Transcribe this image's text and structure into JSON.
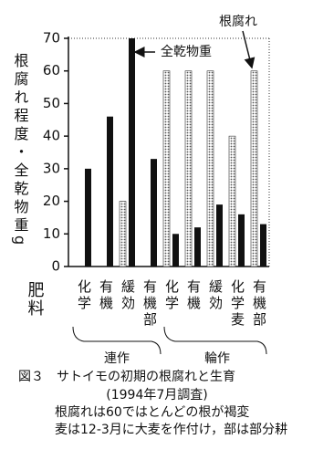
{
  "chart_data": {
    "type": "bar",
    "ylabel": "根腐れ程度・全乾物重g",
    "xlabel": "肥料",
    "categories": [
      "化学",
      "有機",
      "緩効",
      "有機部",
      "化学",
      "有機",
      "緩効",
      "化学麦",
      "有機部"
    ],
    "series": [
      {
        "name": "根腐れ",
        "color": "#555555",
        "pattern": "dots",
        "values": [
          0,
          0,
          20,
          0,
          60,
          60,
          60,
          40,
          60
        ]
      },
      {
        "name": "全乾物重",
        "color": "#111111",
        "pattern": "solid",
        "values": [
          30,
          46,
          70,
          33,
          10,
          12,
          19,
          16,
          13
        ]
      }
    ],
    "groups": [
      "連作",
      "輪作"
    ],
    "ylim": [
      0,
      70
    ],
    "yticks": [
      0,
      10,
      20,
      30,
      40,
      50,
      60,
      70
    ],
    "title": "図３　サトイモの初期の根腐れと生育",
    "notes": [
      "(1994年7月調査)",
      "根腐れは60ではとんどの根が褐変",
      "麦は12-3月に大麦を作付け，部は部分耕"
    ]
  }
}
